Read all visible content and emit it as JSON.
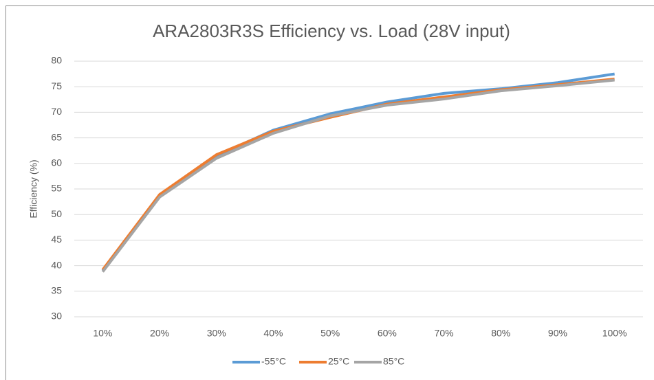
{
  "chart_data": {
    "type": "line",
    "title": "ARA2803R3S Efficiency vs. Load  (28V input)",
    "y_label": "Efficiency (%)",
    "categories": [
      "10%",
      "20%",
      "30%",
      "40%",
      "50%",
      "60%",
      "70%",
      "80%",
      "90%",
      "100%"
    ],
    "series": [
      {
        "name": "-55°C",
        "color": "#5b9bd5",
        "values": [
          39.0,
          53.8,
          61.5,
          66.5,
          69.7,
          72.0,
          73.7,
          74.6,
          75.8,
          77.5
        ]
      },
      {
        "name": "25°C",
        "color": "#ed7d31",
        "values": [
          39.2,
          53.9,
          61.7,
          66.3,
          69.0,
          71.6,
          73.0,
          74.4,
          75.4,
          76.5
        ]
      },
      {
        "name": "85°C",
        "color": "#a5a5a5",
        "values": [
          38.8,
          53.4,
          61.0,
          65.9,
          69.3,
          71.4,
          72.6,
          74.2,
          75.2,
          76.3
        ]
      }
    ],
    "ylim": [
      30,
      80
    ],
    "yticks": [
      30,
      35,
      40,
      45,
      50,
      55,
      60,
      65,
      70,
      75,
      80
    ],
    "grid": true,
    "legend": "bottom"
  }
}
